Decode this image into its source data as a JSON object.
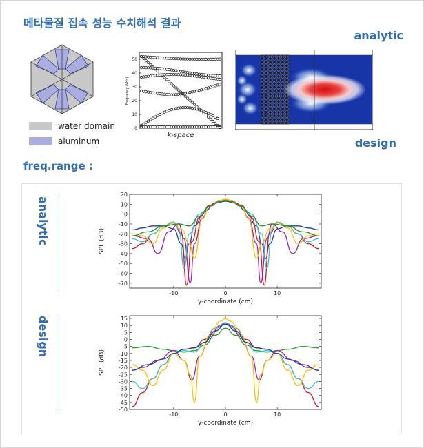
{
  "header": {
    "title": "메타물질 집속 성능 수치해석 결과",
    "analytic": "analytic",
    "design": "design",
    "freq_range": "freq.range :"
  },
  "legend": {
    "water_domain": "water domain",
    "aluminum": "aluminum",
    "water_color": "#c8c8c8",
    "aluminum_color": "#a9aede"
  },
  "band": {
    "xlabel": "k-space",
    "ylabel": "Frequency (kHz)",
    "yticks": [
      "0",
      "10",
      "20",
      "30",
      "40",
      "50"
    ]
  },
  "chart_data": [
    {
      "type": "line",
      "title": "",
      "row_label": "analytic",
      "xlabel": "y-coordinate (cm)",
      "ylabel": "SPL (dB)",
      "xlim": [
        -18.5,
        18.5
      ],
      "ylim": [
        -75,
        20
      ],
      "xticks": [
        "-10",
        "0",
        "10"
      ],
      "yticks": [
        "20",
        "10",
        "0",
        "-10",
        "-20",
        "-30",
        "-40",
        "-50",
        "-60",
        "-70"
      ],
      "series": [
        {
          "color": "#1f3f99",
          "x": [
            -18,
            -16,
            -14,
            -12,
            -10,
            -8.5,
            -7.8,
            -7,
            -6,
            -4,
            -2,
            0,
            2,
            4,
            6,
            7,
            7.8,
            8.5,
            10,
            12,
            14,
            16,
            18
          ],
          "values": [
            -16,
            -14,
            -12,
            -12,
            -15,
            -30,
            -45,
            -30,
            -12,
            3,
            11,
            13,
            11,
            3,
            -12,
            -30,
            -45,
            -30,
            -15,
            -12,
            -12,
            -14,
            -16
          ]
        },
        {
          "color": "#d4171b",
          "x": [
            -18,
            -16,
            -14,
            -12,
            -10,
            -8.5,
            -7.5,
            -6.5,
            -5,
            -3,
            -1,
            0,
            1,
            3,
            5,
            6.5,
            7.5,
            8.5,
            10,
            12,
            14,
            16,
            18
          ],
          "values": [
            -35,
            -30,
            -20,
            -12,
            -9,
            -20,
            -72,
            -28,
            -3,
            9,
            14,
            15,
            14,
            9,
            -3,
            -28,
            -72,
            -20,
            -9,
            -12,
            -20,
            -30,
            -35
          ]
        },
        {
          "color": "#9b1db0",
          "x": [
            -18,
            -15,
            -13,
            -11,
            -9,
            -8,
            -6.8,
            -6,
            -4.5,
            -3,
            -1,
            0,
            1,
            3,
            4.5,
            6,
            6.8,
            8,
            9,
            11,
            13,
            15,
            18
          ],
          "values": [
            -22,
            -25,
            -40,
            -18,
            -10,
            -25,
            -70,
            -30,
            -4,
            8,
            13,
            14,
            13,
            8,
            -4,
            -30,
            -70,
            -25,
            -10,
            -18,
            -40,
            -25,
            -22
          ]
        },
        {
          "color": "#3cc0c8",
          "x": [
            -18,
            -16,
            -14,
            -12,
            -10,
            -9,
            -8,
            -7,
            -5,
            -3,
            -1,
            0,
            1,
            3,
            5,
            7,
            8,
            9,
            10,
            12,
            14,
            16,
            18
          ],
          "values": [
            -25,
            -28,
            -20,
            -12,
            -8,
            -15,
            -55,
            -20,
            0,
            8,
            13,
            14,
            13,
            8,
            0,
            -20,
            -55,
            -15,
            -8,
            -12,
            -20,
            -28,
            -25
          ]
        },
        {
          "color": "#ffbf00",
          "x": [
            -18,
            -16,
            -14,
            -12,
            -10,
            -8.5,
            -7,
            -6,
            -4.5,
            -3,
            -1,
            0,
            1,
            3,
            4.5,
            6,
            7,
            8.5,
            10,
            12,
            14,
            16,
            18
          ],
          "values": [
            -20,
            -22,
            -30,
            -14,
            -9,
            -15,
            -30,
            -45,
            -5,
            8,
            14,
            15,
            14,
            8,
            -5,
            -45,
            -30,
            -15,
            -9,
            -14,
            -30,
            -22,
            -20
          ]
        },
        {
          "color": "#2a8a2a",
          "x": [
            -18,
            -15,
            -12,
            -9,
            -7,
            -5,
            -3,
            -1,
            0,
            1,
            3,
            5,
            7,
            9,
            12,
            15,
            18
          ],
          "values": [
            -22,
            -18,
            -12,
            -10,
            -12,
            -2,
            8,
            13,
            14,
            13,
            8,
            -2,
            -12,
            -10,
            -12,
            -18,
            -22
          ]
        }
      ]
    },
    {
      "type": "line",
      "title": "",
      "row_label": "design",
      "xlabel": "y-coordinate (cm)",
      "ylabel": "SPL (dB)",
      "xlim": [
        -18.5,
        18.5
      ],
      "ylim": [
        -50,
        17
      ],
      "xticks": [
        "-10",
        "0",
        "10"
      ],
      "yticks": [
        "15",
        "10",
        "5",
        "0",
        "-5",
        "-10",
        "-15",
        "-20",
        "-25",
        "-30",
        "-35",
        "-40",
        "-45",
        "-50"
      ],
      "series": [
        {
          "color": "#2a9a2a",
          "x": [
            -18,
            -15,
            -12,
            -10,
            -8,
            -6,
            -4,
            -2,
            0,
            2,
            4,
            6,
            8,
            10,
            12,
            15,
            18
          ],
          "values": [
            -6,
            -5,
            -7,
            -8,
            -9,
            -8,
            -4,
            3,
            8,
            3,
            -4,
            -8,
            -9,
            -8,
            -7,
            -5,
            -6
          ]
        },
        {
          "color": "#d4171b",
          "x": [
            -18,
            -16,
            -14,
            -12,
            -10,
            -8,
            -6,
            -4,
            -2,
            0,
            2,
            4,
            6,
            8,
            10,
            12,
            14,
            16,
            18
          ],
          "values": [
            -48,
            -38,
            -28,
            -18,
            -10,
            -7,
            -6,
            0,
            8,
            11,
            8,
            0,
            -6,
            -7,
            -10,
            -18,
            -28,
            -38,
            -48
          ]
        },
        {
          "color": "#9b1db0",
          "x": [
            -18,
            -16,
            -13,
            -10,
            -8,
            -6.5,
            -5,
            -3,
            -1,
            0,
            1,
            3,
            5,
            6.5,
            8,
            10,
            13,
            16,
            18
          ],
          "values": [
            -22,
            -20,
            -15,
            -8,
            -15,
            -29,
            -12,
            2,
            10,
            12,
            10,
            2,
            -12,
            -29,
            -15,
            -8,
            -15,
            -20,
            -22
          ]
        },
        {
          "color": "#3cc0c8",
          "x": [
            -18,
            -16,
            -14,
            -12,
            -10,
            -8,
            -6,
            -4,
            -2,
            0,
            2,
            4,
            6,
            8,
            10,
            12,
            14,
            16,
            18
          ],
          "values": [
            -30,
            -35,
            -28,
            -18,
            -10,
            -8,
            -9,
            -2,
            8,
            12,
            8,
            -2,
            -9,
            -8,
            -10,
            -18,
            -28,
            -35,
            -30
          ]
        },
        {
          "color": "#ffbf00",
          "x": [
            -18,
            -16,
            -14,
            -12,
            -10,
            -8,
            -6.8,
            -6,
            -5,
            -3,
            -1,
            0,
            1,
            3,
            5,
            6,
            6.8,
            8,
            10,
            12,
            14,
            16,
            18
          ],
          "values": [
            -18,
            -22,
            -33,
            -22,
            -10,
            -15,
            -25,
            -45,
            -12,
            3,
            13,
            15,
            13,
            3,
            -12,
            -45,
            -25,
            -15,
            -10,
            -22,
            -33,
            -22,
            -18
          ]
        },
        {
          "color": "#1f3f99",
          "x": [
            -18,
            -15,
            -12,
            -10,
            -8,
            -6,
            -4,
            -2,
            0,
            2,
            4,
            6,
            8,
            10,
            12,
            15,
            18
          ],
          "values": [
            -22,
            -18,
            -14,
            -10,
            -7,
            -6,
            -2,
            6,
            11,
            6,
            -2,
            -6,
            -7,
            -10,
            -14,
            -18,
            -22
          ]
        }
      ]
    }
  ]
}
